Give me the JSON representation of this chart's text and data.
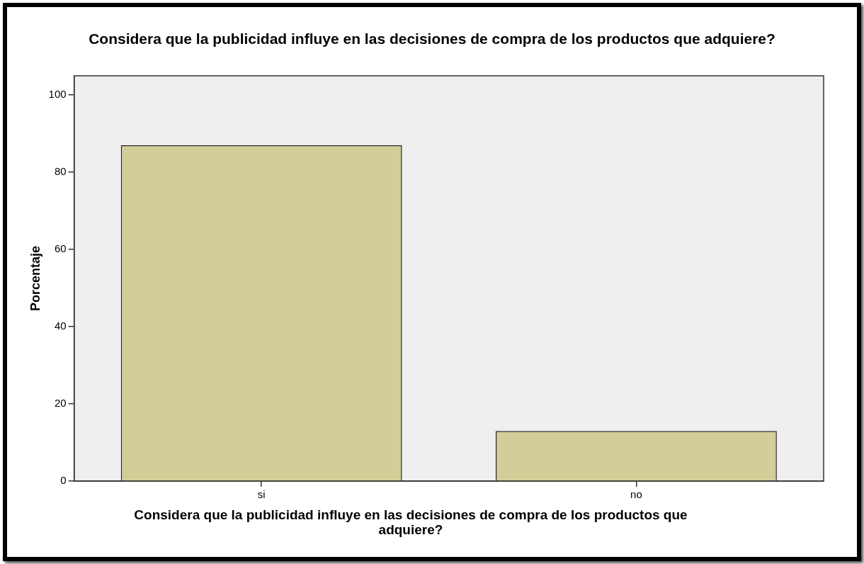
{
  "chart_data": {
    "type": "bar",
    "title": "Considera que la publicidad influye en las decisiones de compra de los productos que adquiere?",
    "xlabel": "Considera que la publicidad influye en las decisiones de compra de los productos que adquiere?",
    "ylabel": "Porcentaje",
    "categories": [
      "si",
      "no"
    ],
    "values": [
      87,
      13
    ],
    "color": "#d3cd98",
    "ylim": [
      0,
      105
    ],
    "yticks": [
      0,
      20,
      40,
      60,
      80,
      100
    ],
    "grid": false,
    "legend": false
  }
}
